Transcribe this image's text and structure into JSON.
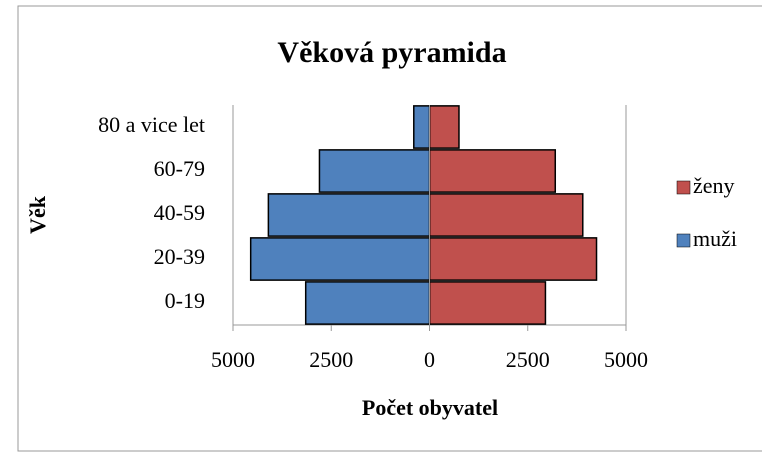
{
  "chart_data": {
    "type": "pyramid",
    "title": "Věková pyramida",
    "xlabel": "Počet obyvatel",
    "ylabel": "Věk",
    "categories": [
      "0-19",
      "20-39",
      "40-59",
      "60-79",
      "80 a vice let"
    ],
    "series": [
      {
        "name": "ženy",
        "color": "#c0504d",
        "values": [
          2950,
          4250,
          3900,
          3200,
          750
        ]
      },
      {
        "name": "muži",
        "color": "#4f81bd",
        "values": [
          -3150,
          -4550,
          -4100,
          -2800,
          -400
        ]
      }
    ],
    "xlim": [
      -5000,
      5000
    ],
    "xticks": [
      {
        "value": -5000,
        "label": "5000"
      },
      {
        "value": -2500,
        "label": "2500"
      },
      0,
      2500,
      5000
    ],
    "legend": "right"
  }
}
